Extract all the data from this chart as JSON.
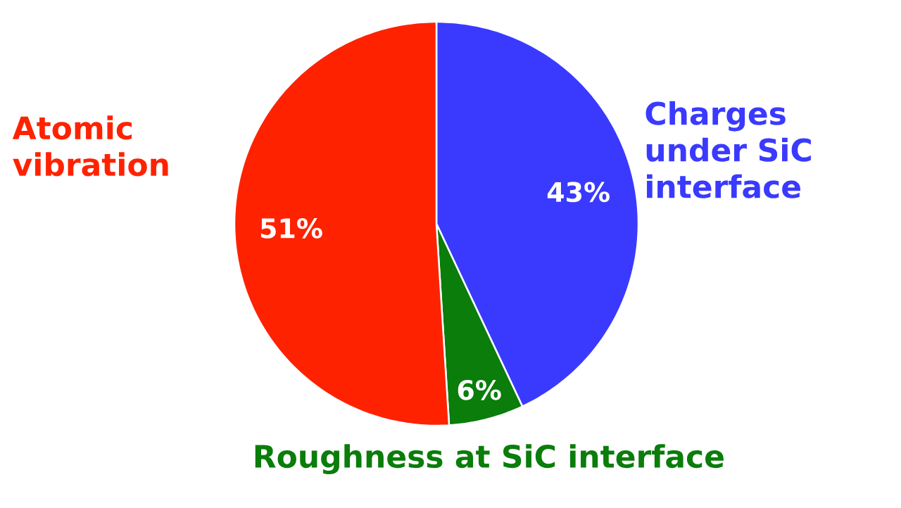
{
  "chart_data": {
    "type": "pie",
    "categories": [
      "Charges under SiC interface",
      "Roughness at SiC interface",
      "Atomic vibration"
    ],
    "values": [
      43,
      6,
      51
    ],
    "colors": [
      "#3a3aff",
      "#0a7d0a",
      "#ff2200"
    ],
    "value_labels": [
      "43%",
      "6%",
      "51%"
    ]
  }
}
